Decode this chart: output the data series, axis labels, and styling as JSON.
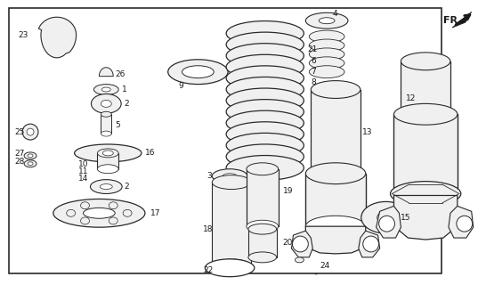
{
  "bg_color": "#ffffff",
  "lc": "#2a2a2a",
  "pf": "#f0f0f0",
  "tc": "#1a1a1a",
  "figsize": [
    5.37,
    3.2
  ],
  "dpi": 100
}
